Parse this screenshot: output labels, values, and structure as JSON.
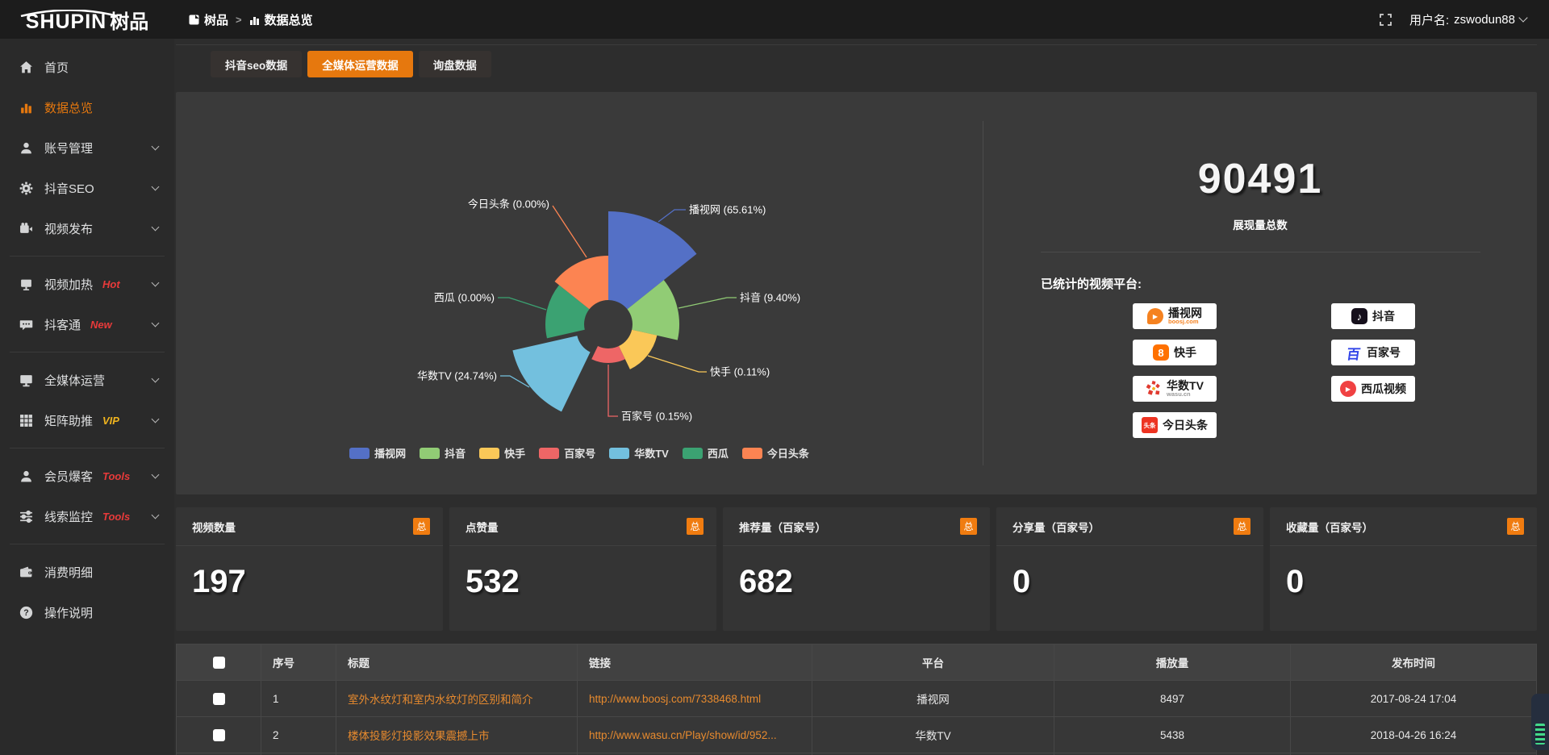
{
  "topbar": {
    "logo_main": "SHUPIN",
    "logo_cn": "树品",
    "breadcrumb": [
      {
        "label": "树品"
      },
      {
        "label": "数据总览"
      }
    ],
    "breadcrumb_separator": ">",
    "username_label": "用户名:",
    "username": "zswodun88"
  },
  "sidebar": {
    "items": [
      {
        "label": "首页",
        "icon": "home"
      },
      {
        "label": "数据总览",
        "icon": "chart-bar",
        "active": true
      },
      {
        "label": "账号管理",
        "icon": "user",
        "expandable": true
      },
      {
        "label": "抖音SEO",
        "icon": "gear",
        "expandable": true
      },
      {
        "label": "视频发布",
        "icon": "video",
        "expandable": true,
        "divider_after": true
      },
      {
        "label": "视频加热",
        "icon": "screen",
        "badge": "Hot",
        "badge_color": "#e83a3a",
        "expandable": true
      },
      {
        "label": "抖客通",
        "icon": "chat",
        "badge": "New",
        "badge_color": "#e83a3a",
        "expandable": true,
        "divider_after": true
      },
      {
        "label": "全媒体运营",
        "icon": "monitor",
        "expandable": true
      },
      {
        "label": "矩阵助推",
        "icon": "grid",
        "badge": "VIP",
        "badge_color": "#f0b41e",
        "expandable": true,
        "divider_after": true
      },
      {
        "label": "会员爆客",
        "icon": "user",
        "badge": "Tools",
        "badge_color": "#e83a3a",
        "expandable": true
      },
      {
        "label": "线索监控",
        "icon": "sliders",
        "badge": "Tools",
        "badge_color": "#e83a3a",
        "expandable": true,
        "divider_after": true
      },
      {
        "label": "消费明细",
        "icon": "wallet"
      },
      {
        "label": "操作说明",
        "icon": "question"
      }
    ]
  },
  "tabs": [
    {
      "label": "抖音seo数据",
      "active": false
    },
    {
      "label": "全媒体运营数据",
      "active": true
    },
    {
      "label": "询盘数据",
      "active": false
    }
  ],
  "chart_data": {
    "type": "pie",
    "variant": "rose",
    "label_format": "{name} ({percent}%)",
    "legend_position": "bottom",
    "series": [
      {
        "name": "播视网",
        "percent": 65.61,
        "color": "#5470c6"
      },
      {
        "name": "抖音",
        "percent": 9.4,
        "color": "#91cc75"
      },
      {
        "name": "快手",
        "percent": 0.11,
        "color": "#fac858"
      },
      {
        "name": "百家号",
        "percent": 0.15,
        "color": "#ee6666"
      },
      {
        "name": "华数TV",
        "percent": 24.74,
        "color": "#73c0de"
      },
      {
        "name": "西瓜",
        "percent": 0.0,
        "color": "#3ba272"
      },
      {
        "name": "今日头条",
        "percent": 0.0,
        "color": "#fc8452"
      }
    ],
    "legend": [
      "播视网",
      "抖音",
      "快手",
      "百家号",
      "华数TV",
      "西瓜",
      "今日头条"
    ]
  },
  "summary": {
    "total_value": "90491",
    "total_label": "展现量总数",
    "platforms_title": "已统计的视频平台:",
    "platform_columns": [
      [
        {
          "name": "播视网",
          "sub": "boosj.com",
          "icon": "boosj"
        },
        {
          "name": "快手",
          "icon": "kuaishou"
        },
        {
          "name": "华数TV",
          "sub": "wasu.cn",
          "icon": "wasu"
        },
        {
          "name": "今日头条",
          "icon": "toutiao"
        }
      ],
      [
        {
          "name": "抖音",
          "icon": "douyin"
        },
        {
          "name": "百家号",
          "icon": "baijiahao"
        },
        {
          "name": "西瓜视频",
          "icon": "xigua"
        }
      ]
    ]
  },
  "stat_cards": [
    {
      "label": "视频数量",
      "badge": "总",
      "value": "197"
    },
    {
      "label": "点赞量",
      "badge": "总",
      "value": "532"
    },
    {
      "label": "推荐量（百家号）",
      "badge": "总",
      "value": "682"
    },
    {
      "label": "分享量（百家号）",
      "badge": "总",
      "value": "0"
    },
    {
      "label": "收藏量（百家号）",
      "badge": "总",
      "value": "0"
    }
  ],
  "table": {
    "headers": [
      "序号",
      "标题",
      "链接",
      "平台",
      "播放量",
      "发布时间"
    ],
    "rows": [
      {
        "cells": [
          "1",
          "室外水纹灯和室内水纹灯的区别和简介",
          "http://www.boosj.com/7338468.html",
          "播视网",
          "8497",
          "2017-08-24 17:04"
        ]
      },
      {
        "cells": [
          "2",
          "楼体投影灯投影效果震撼上市",
          "http://www.wasu.cn/Play/show/id/952...",
          "华数TV",
          "5438",
          "2018-04-26 16:24"
        ]
      }
    ]
  }
}
